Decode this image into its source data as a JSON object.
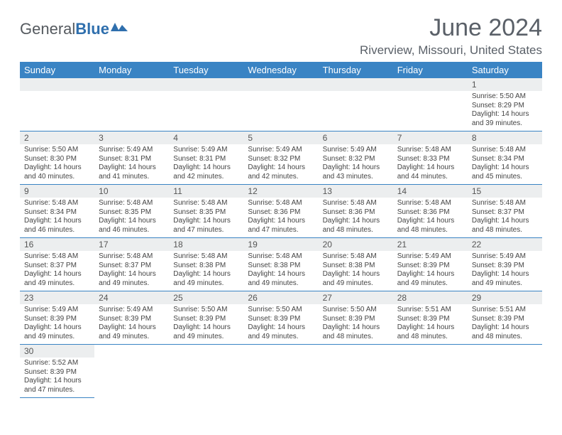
{
  "logo": {
    "text1": "General",
    "text2": "Blue"
  },
  "title": "June 2024",
  "location": "Riverview, Missouri, United States",
  "colors": {
    "header_bg": "#3a84c4",
    "header_fg": "#ffffff",
    "daynum_bg": "#eceeef",
    "border": "#3a84c4",
    "text": "#444444",
    "title_fg": "#5a6068",
    "logo_gray": "#555a5f",
    "logo_blue": "#2f6fad"
  },
  "weekdays": [
    "Sunday",
    "Monday",
    "Tuesday",
    "Wednesday",
    "Thursday",
    "Friday",
    "Saturday"
  ],
  "weeks": [
    [
      null,
      null,
      null,
      null,
      null,
      null,
      {
        "n": "1",
        "sr": "Sunrise: 5:50 AM",
        "ss": "Sunset: 8:29 PM",
        "d1": "Daylight: 14 hours",
        "d2": "and 39 minutes."
      }
    ],
    [
      {
        "n": "2",
        "sr": "Sunrise: 5:50 AM",
        "ss": "Sunset: 8:30 PM",
        "d1": "Daylight: 14 hours",
        "d2": "and 40 minutes."
      },
      {
        "n": "3",
        "sr": "Sunrise: 5:49 AM",
        "ss": "Sunset: 8:31 PM",
        "d1": "Daylight: 14 hours",
        "d2": "and 41 minutes."
      },
      {
        "n": "4",
        "sr": "Sunrise: 5:49 AM",
        "ss": "Sunset: 8:31 PM",
        "d1": "Daylight: 14 hours",
        "d2": "and 42 minutes."
      },
      {
        "n": "5",
        "sr": "Sunrise: 5:49 AM",
        "ss": "Sunset: 8:32 PM",
        "d1": "Daylight: 14 hours",
        "d2": "and 42 minutes."
      },
      {
        "n": "6",
        "sr": "Sunrise: 5:49 AM",
        "ss": "Sunset: 8:32 PM",
        "d1": "Daylight: 14 hours",
        "d2": "and 43 minutes."
      },
      {
        "n": "7",
        "sr": "Sunrise: 5:48 AM",
        "ss": "Sunset: 8:33 PM",
        "d1": "Daylight: 14 hours",
        "d2": "and 44 minutes."
      },
      {
        "n": "8",
        "sr": "Sunrise: 5:48 AM",
        "ss": "Sunset: 8:34 PM",
        "d1": "Daylight: 14 hours",
        "d2": "and 45 minutes."
      }
    ],
    [
      {
        "n": "9",
        "sr": "Sunrise: 5:48 AM",
        "ss": "Sunset: 8:34 PM",
        "d1": "Daylight: 14 hours",
        "d2": "and 46 minutes."
      },
      {
        "n": "10",
        "sr": "Sunrise: 5:48 AM",
        "ss": "Sunset: 8:35 PM",
        "d1": "Daylight: 14 hours",
        "d2": "and 46 minutes."
      },
      {
        "n": "11",
        "sr": "Sunrise: 5:48 AM",
        "ss": "Sunset: 8:35 PM",
        "d1": "Daylight: 14 hours",
        "d2": "and 47 minutes."
      },
      {
        "n": "12",
        "sr": "Sunrise: 5:48 AM",
        "ss": "Sunset: 8:36 PM",
        "d1": "Daylight: 14 hours",
        "d2": "and 47 minutes."
      },
      {
        "n": "13",
        "sr": "Sunrise: 5:48 AM",
        "ss": "Sunset: 8:36 PM",
        "d1": "Daylight: 14 hours",
        "d2": "and 48 minutes."
      },
      {
        "n": "14",
        "sr": "Sunrise: 5:48 AM",
        "ss": "Sunset: 8:36 PM",
        "d1": "Daylight: 14 hours",
        "d2": "and 48 minutes."
      },
      {
        "n": "15",
        "sr": "Sunrise: 5:48 AM",
        "ss": "Sunset: 8:37 PM",
        "d1": "Daylight: 14 hours",
        "d2": "and 48 minutes."
      }
    ],
    [
      {
        "n": "16",
        "sr": "Sunrise: 5:48 AM",
        "ss": "Sunset: 8:37 PM",
        "d1": "Daylight: 14 hours",
        "d2": "and 49 minutes."
      },
      {
        "n": "17",
        "sr": "Sunrise: 5:48 AM",
        "ss": "Sunset: 8:37 PM",
        "d1": "Daylight: 14 hours",
        "d2": "and 49 minutes."
      },
      {
        "n": "18",
        "sr": "Sunrise: 5:48 AM",
        "ss": "Sunset: 8:38 PM",
        "d1": "Daylight: 14 hours",
        "d2": "and 49 minutes."
      },
      {
        "n": "19",
        "sr": "Sunrise: 5:48 AM",
        "ss": "Sunset: 8:38 PM",
        "d1": "Daylight: 14 hours",
        "d2": "and 49 minutes."
      },
      {
        "n": "20",
        "sr": "Sunrise: 5:48 AM",
        "ss": "Sunset: 8:38 PM",
        "d1": "Daylight: 14 hours",
        "d2": "and 49 minutes."
      },
      {
        "n": "21",
        "sr": "Sunrise: 5:49 AM",
        "ss": "Sunset: 8:39 PM",
        "d1": "Daylight: 14 hours",
        "d2": "and 49 minutes."
      },
      {
        "n": "22",
        "sr": "Sunrise: 5:49 AM",
        "ss": "Sunset: 8:39 PM",
        "d1": "Daylight: 14 hours",
        "d2": "and 49 minutes."
      }
    ],
    [
      {
        "n": "23",
        "sr": "Sunrise: 5:49 AM",
        "ss": "Sunset: 8:39 PM",
        "d1": "Daylight: 14 hours",
        "d2": "and 49 minutes."
      },
      {
        "n": "24",
        "sr": "Sunrise: 5:49 AM",
        "ss": "Sunset: 8:39 PM",
        "d1": "Daylight: 14 hours",
        "d2": "and 49 minutes."
      },
      {
        "n": "25",
        "sr": "Sunrise: 5:50 AM",
        "ss": "Sunset: 8:39 PM",
        "d1": "Daylight: 14 hours",
        "d2": "and 49 minutes."
      },
      {
        "n": "26",
        "sr": "Sunrise: 5:50 AM",
        "ss": "Sunset: 8:39 PM",
        "d1": "Daylight: 14 hours",
        "d2": "and 49 minutes."
      },
      {
        "n": "27",
        "sr": "Sunrise: 5:50 AM",
        "ss": "Sunset: 8:39 PM",
        "d1": "Daylight: 14 hours",
        "d2": "and 48 minutes."
      },
      {
        "n": "28",
        "sr": "Sunrise: 5:51 AM",
        "ss": "Sunset: 8:39 PM",
        "d1": "Daylight: 14 hours",
        "d2": "and 48 minutes."
      },
      {
        "n": "29",
        "sr": "Sunrise: 5:51 AM",
        "ss": "Sunset: 8:39 PM",
        "d1": "Daylight: 14 hours",
        "d2": "and 48 minutes."
      }
    ],
    [
      {
        "n": "30",
        "sr": "Sunrise: 5:52 AM",
        "ss": "Sunset: 8:39 PM",
        "d1": "Daylight: 14 hours",
        "d2": "and 47 minutes."
      },
      null,
      null,
      null,
      null,
      null,
      null
    ]
  ]
}
